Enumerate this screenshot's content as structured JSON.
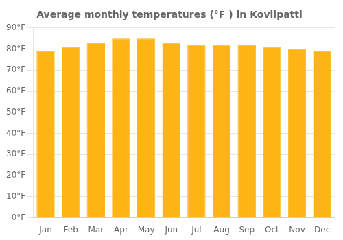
{
  "chart_data": {
    "type": "bar",
    "title": "Average monthly temperatures (°F ) in Kovilpatti",
    "categories": [
      "Jan",
      "Feb",
      "Mar",
      "Apr",
      "May",
      "Jun",
      "Jul",
      "Aug",
      "Sep",
      "Oct",
      "Nov",
      "Dec"
    ],
    "values": [
      79,
      81,
      83,
      85,
      85,
      83,
      82,
      82,
      82,
      81,
      80,
      79
    ],
    "color": "#FDB515",
    "ylim": [
      0,
      90
    ],
    "yticks": [
      {
        "value": 0,
        "label": "0°F"
      },
      {
        "value": 10,
        "label": "10°F"
      },
      {
        "value": 20,
        "label": "20°F"
      },
      {
        "value": 30,
        "label": "30°F"
      },
      {
        "value": 40,
        "label": "40°F"
      },
      {
        "value": 50,
        "label": "50°F"
      },
      {
        "value": 60,
        "label": "60°F"
      },
      {
        "value": 70,
        "label": "70°F"
      },
      {
        "value": 80,
        "label": "80°F"
      },
      {
        "value": 90,
        "label": "90°F"
      }
    ],
    "grid": true
  }
}
